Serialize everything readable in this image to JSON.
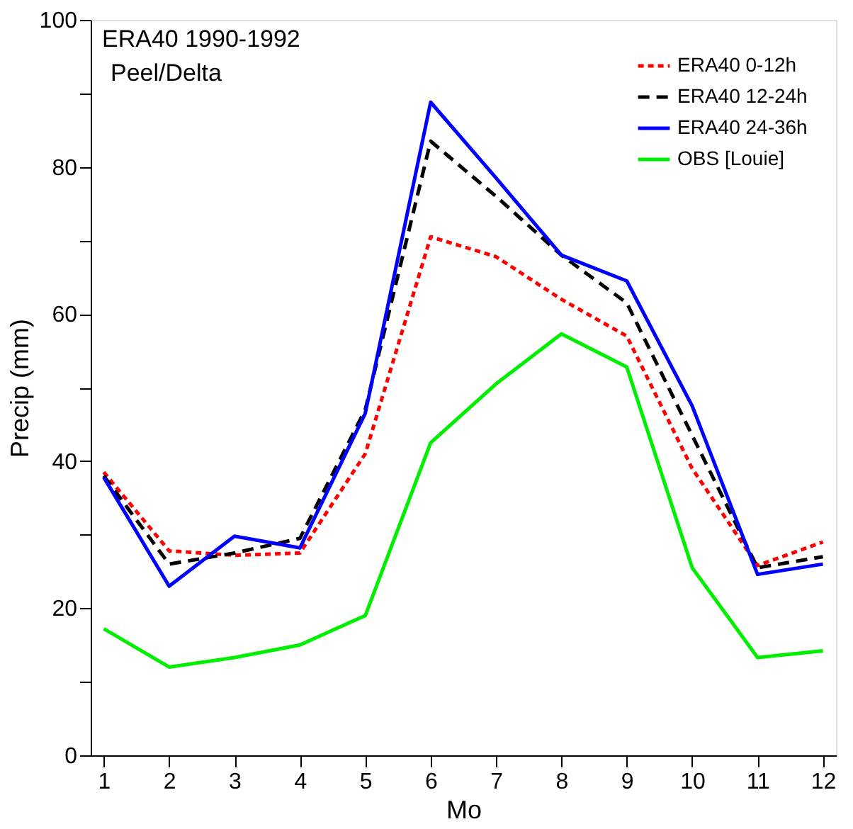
{
  "chart_data": {
    "type": "line",
    "xlabel": "Mo",
    "ylabel": "Precip (mm)",
    "x": [
      1,
      2,
      3,
      4,
      5,
      6,
      7,
      8,
      9,
      10,
      11,
      12
    ],
    "series": [
      {
        "name": "ERA40 0-12h",
        "color": "#ff0000",
        "line_style": "dotted",
        "values": [
          38.5,
          27.8,
          27.2,
          27.5,
          41,
          70.5,
          67.8,
          62,
          57,
          39,
          25.8,
          29
        ]
      },
      {
        "name": "ERA40 12-24h",
        "color": "#000000",
        "line_style": "dashed",
        "values": [
          38,
          26,
          27.5,
          29.5,
          47,
          83.5,
          76,
          68,
          61.5,
          43.5,
          25.5,
          27
        ]
      },
      {
        "name": "ERA40 24-36h",
        "color": "#0000ff",
        "line_style": "solid",
        "values": [
          37.8,
          23,
          29.8,
          28.2,
          46.5,
          88.8,
          78.5,
          68,
          64.5,
          47.5,
          24.6,
          26
        ]
      },
      {
        "name": "OBS [Louie]",
        "color": "#00ee00",
        "line_style": "solid",
        "values": [
          17.2,
          12,
          13.3,
          15,
          19,
          42.5,
          50.5,
          57.3,
          52.8,
          25.5,
          13.3,
          14.2
        ]
      }
    ],
    "xlim": [
      0.8,
      12.2
    ],
    "xticks": [
      1,
      2,
      3,
      4,
      5,
      6,
      7,
      8,
      9,
      10,
      11,
      12
    ],
    "ylim": [
      0,
      100
    ],
    "yticks": [
      0,
      {
        "value": 10,
        "label": null
      },
      20,
      {
        "value": 30,
        "label": null
      },
      40,
      {
        "value": 50,
        "label": null
      },
      60,
      {
        "value": 70,
        "label": null
      },
      80,
      {
        "value": 90,
        "label": null
      },
      100
    ],
    "annotations": [
      "ERA40 1990-1992",
      "Peel/Delta"
    ],
    "grid": false,
    "legend": "top right",
    "marker": "none"
  }
}
